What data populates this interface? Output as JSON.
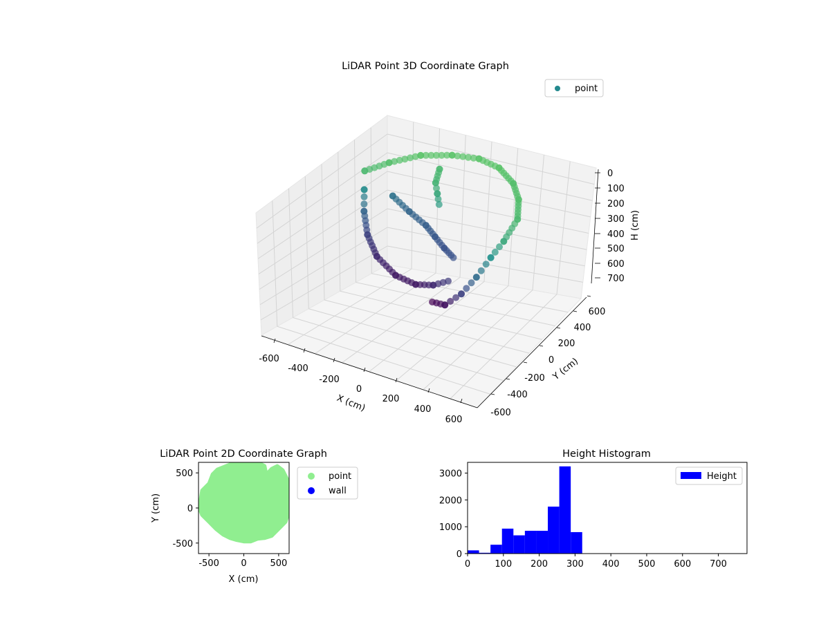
{
  "chart_data": [
    {
      "type": "scatter",
      "title": "LiDAR Point 3D Coordinate Graph",
      "xlabel": "X (cm)",
      "ylabel": "Y (cm)",
      "zlabel": "H (cm)",
      "xlim": [
        -700,
        700
      ],
      "ylim": [
        -700,
        700
      ],
      "zlim": [
        750,
        0
      ],
      "z_axis_inverted": true,
      "x_ticks": [
        "-600",
        "-400",
        "-200",
        "0",
        "200",
        "400",
        "600"
      ],
      "y_ticks": [
        "-600",
        "-400",
        "-200",
        "0",
        "200",
        "400",
        "600"
      ],
      "z_ticks": [
        "0",
        "100",
        "200",
        "300",
        "400",
        "500",
        "600",
        "700"
      ],
      "colormap": "viridis",
      "grid": true,
      "legend": {
        "placement": "upper-right",
        "entries": [
          {
            "label": "point",
            "color": "#23898e"
          }
        ]
      },
      "series": [
        {
          "name": "point",
          "description_points_xyh": [
            [
              -500,
              150,
              130
            ],
            [
              -420,
              260,
              120
            ],
            [
              -300,
              380,
              110
            ],
            [
              -150,
              460,
              110
            ],
            [
              0,
              500,
              110
            ],
            [
              150,
              480,
              110
            ],
            [
              300,
              410,
              120
            ],
            [
              420,
              300,
              120
            ],
            [
              520,
              160,
              130
            ],
            [
              550,
              0,
              160
            ],
            [
              540,
              -100,
              200
            ],
            [
              520,
              -200,
              260
            ],
            [
              480,
              -280,
              320
            ],
            [
              400,
              -320,
              380
            ],
            [
              300,
              -300,
              400
            ],
            [
              -480,
              120,
              210
            ],
            [
              -420,
              40,
              270
            ],
            [
              -320,
              -60,
              320
            ],
            [
              -180,
              -160,
              350
            ],
            [
              0,
              -230,
              370
            ],
            [
              150,
              -250,
              370
            ],
            [
              260,
              -240,
              350
            ],
            [
              330,
              -200,
              330
            ],
            [
              -350,
              200,
              250
            ],
            [
              -200,
              150,
              270
            ],
            [
              -50,
              100,
              280
            ],
            [
              50,
              50,
              290
            ],
            [
              150,
              0,
              300
            ],
            [
              250,
              -50,
              300
            ],
            [
              -150,
              350,
              130
            ],
            [
              -100,
              250,
              140
            ],
            [
              -50,
              200,
              160
            ],
            [
              0,
              150,
              180
            ]
          ]
        }
      ]
    },
    {
      "type": "scatter",
      "title": "LiDAR Point 2D Coordinate Graph",
      "xlabel": "X (cm)",
      "ylabel": "Y (cm)",
      "xlim": [
        -650,
        650
      ],
      "ylim": [
        -650,
        650
      ],
      "x_ticks": [
        "-500",
        "0",
        "500"
      ],
      "y_ticks": [
        "-500",
        "0",
        "500"
      ],
      "legend": {
        "placement": "outside-right",
        "entries": [
          {
            "label": "point",
            "color": "#90ee90"
          },
          {
            "label": "wall",
            "color": "#0000ff"
          }
        ]
      },
      "series": [
        {
          "name": "point",
          "color": "#90ee90",
          "outline_xy": [
            [
              -640,
              0
            ],
            [
              -600,
              250
            ],
            [
              -500,
              350
            ],
            [
              -450,
              480
            ],
            [
              -380,
              550
            ],
            [
              -200,
              620
            ],
            [
              0,
              650
            ],
            [
              200,
              650
            ],
            [
              300,
              600
            ],
            [
              320,
              500
            ],
            [
              180,
              380
            ],
            [
              250,
              400
            ],
            [
              400,
              560
            ],
            [
              480,
              600
            ],
            [
              560,
              540
            ],
            [
              620,
              420
            ],
            [
              650,
              300
            ],
            [
              650,
              -50
            ],
            [
              600,
              -200
            ],
            [
              500,
              -300
            ],
            [
              400,
              -400
            ],
            [
              300,
              -430
            ],
            [
              200,
              -440
            ],
            [
              100,
              -480
            ],
            [
              0,
              -480
            ],
            [
              -100,
              -460
            ],
            [
              -200,
              -430
            ],
            [
              -300,
              -380
            ],
            [
              -400,
              -300
            ],
            [
              -500,
              -200
            ],
            [
              -600,
              -100
            ]
          ]
        },
        {
          "name": "wall",
          "color": "#0000ff",
          "outline_xy": []
        }
      ]
    },
    {
      "type": "bar",
      "title": "Height Histogram",
      "xlim": [
        0,
        780
      ],
      "ylim": [
        0,
        3400
      ],
      "x_ticks": [
        "0",
        "100",
        "200",
        "300",
        "400",
        "500",
        "600",
        "700"
      ],
      "y_ticks": [
        "0",
        "1000",
        "2000",
        "3000"
      ],
      "legend": {
        "placement": "upper-right",
        "entries": [
          {
            "label": "Height",
            "color": "#0000ff"
          }
        ]
      },
      "bin_width": 32,
      "bin_start": 0,
      "bin_counts": [
        120,
        30,
        330,
        930,
        680,
        850,
        850,
        1750,
        3250,
        800
      ]
    }
  ]
}
